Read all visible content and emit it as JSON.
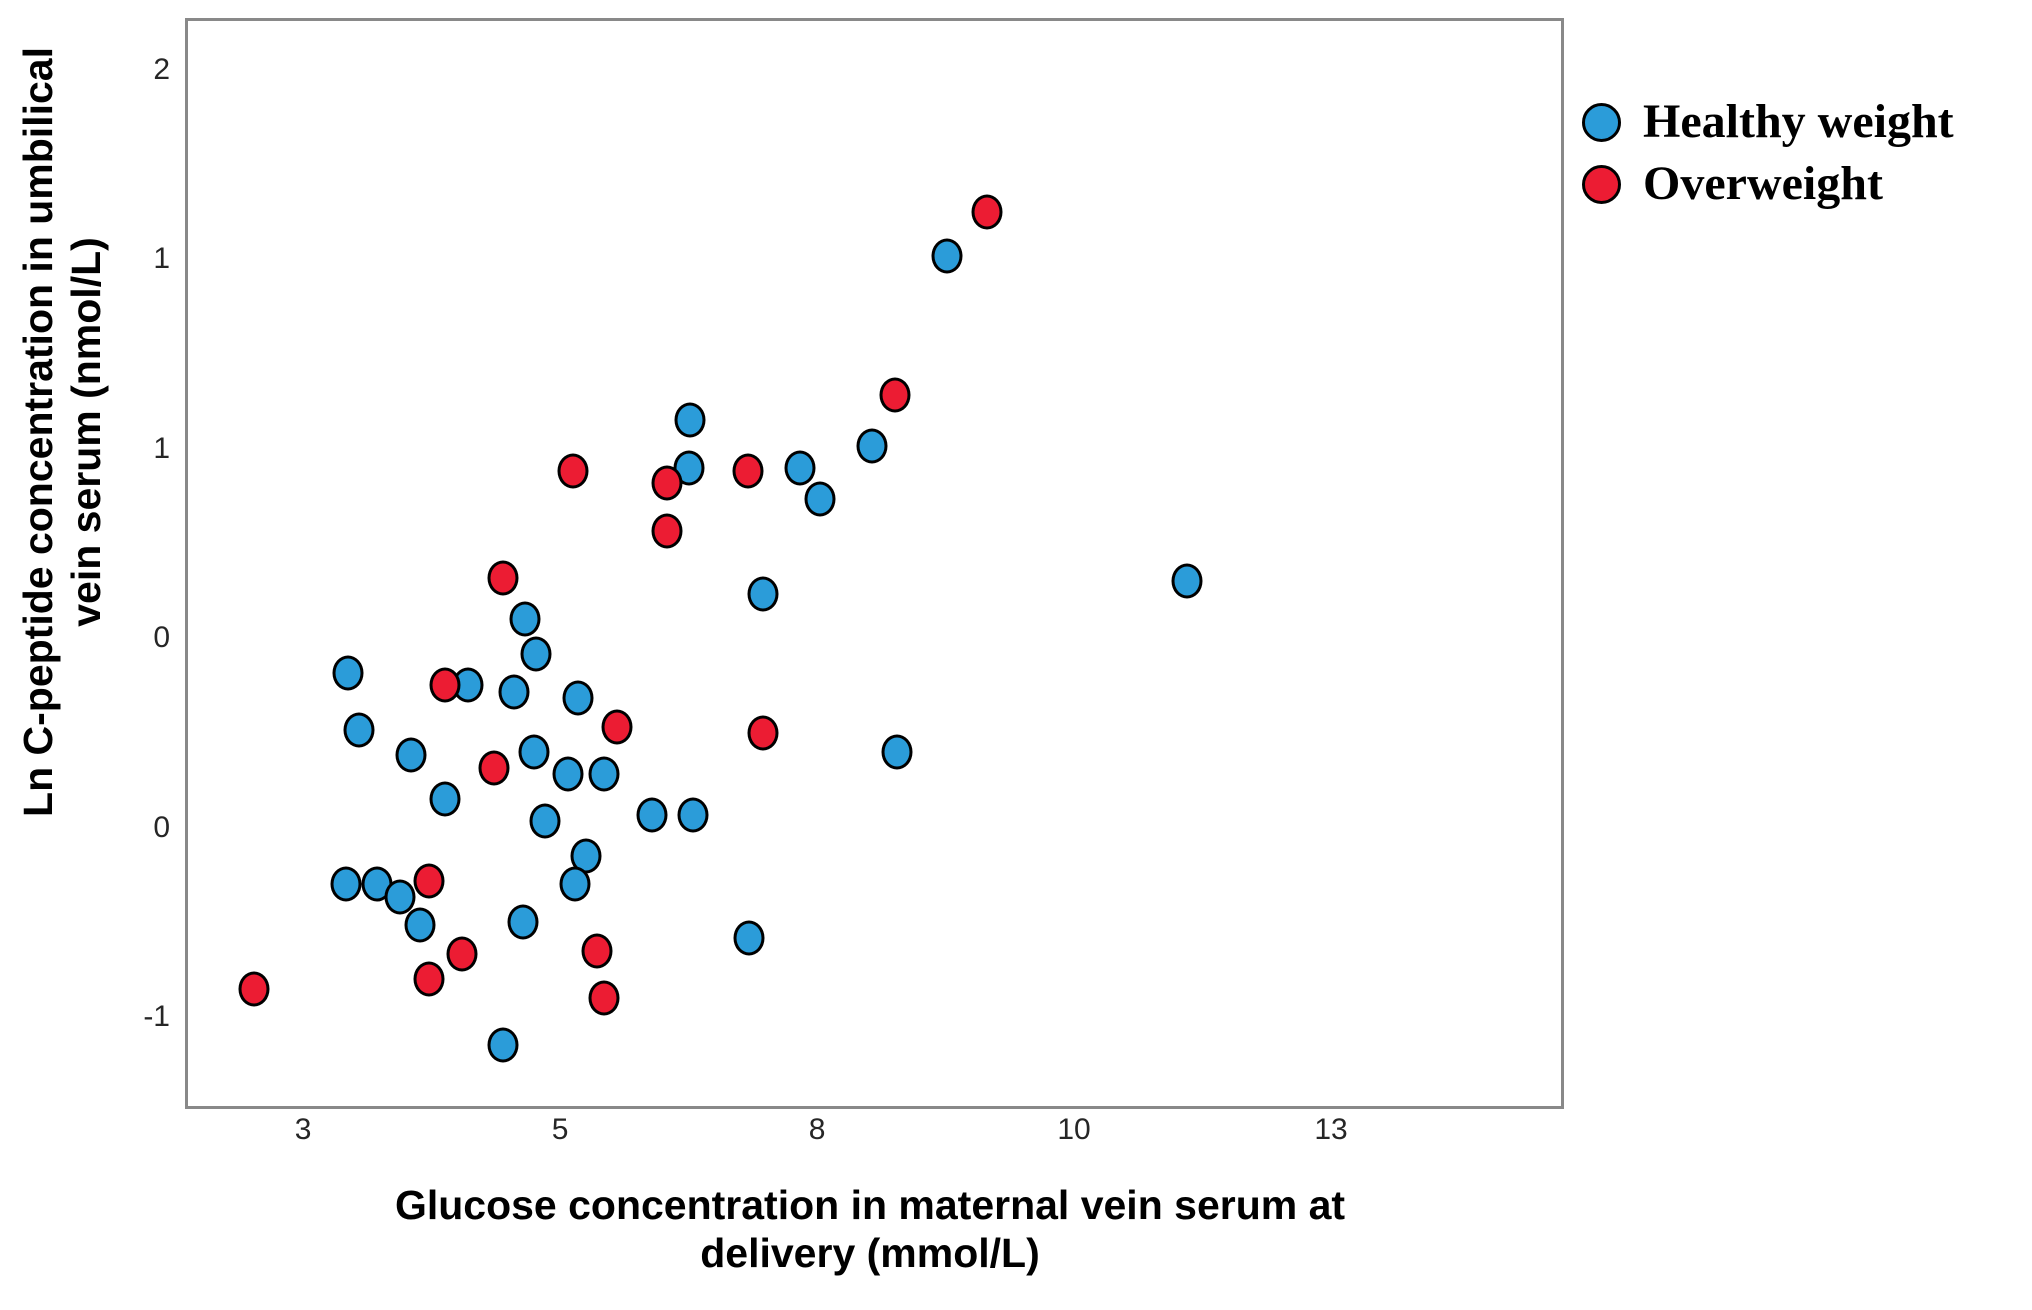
{
  "chart_data": {
    "type": "scatter",
    "title": "",
    "xlabel": "Glucose concentration in maternal vein serum at delivery (mmol/L)",
    "ylabel": "Ln C-peptide concentration in umbilical vein serum (nmol/L)",
    "xlabel_lines": [
      "Glucose concentration in maternal vein serum at",
      "delivery (mmol/L)"
    ],
    "ylabel_lines": [
      "Ln C-peptide concentration in umbilical",
      "vein serum (nmol/L)"
    ],
    "grid": false,
    "legend_position": "top-right",
    "xlim": [
      1.38,
      14.68
    ],
    "ylim": [
      -1.27,
      2.16
    ],
    "x_ticks": [
      {
        "value": 2.5,
        "label": "3"
      },
      {
        "value": 5.0,
        "label": "5"
      },
      {
        "value": 7.5,
        "label": "8"
      },
      {
        "value": 10.0,
        "label": "10"
      },
      {
        "value": 12.5,
        "label": "13"
      }
    ],
    "y_ticks": [
      {
        "value": 2.0,
        "label": "2"
      },
      {
        "value": 1.4,
        "label": "1"
      },
      {
        "value": 0.8,
        "label": "1"
      },
      {
        "value": 0.2,
        "label": "0"
      },
      {
        "value": -0.4,
        "label": "0"
      },
      {
        "value": -1.0,
        "label": "-1"
      }
    ],
    "series": [
      {
        "name": "Healthy weight",
        "color": "#2B9CD9",
        "points": [
          [
            6.26,
            0.89
          ],
          [
            6.25,
            0.74
          ],
          [
            7.33,
            0.74
          ],
          [
            7.53,
            0.64
          ],
          [
            8.03,
            0.81
          ],
          [
            8.76,
            1.41
          ],
          [
            11.1,
            0.38
          ],
          [
            8.28,
            -0.16
          ],
          [
            4.66,
            0.26
          ],
          [
            4.77,
            0.15
          ],
          [
            2.94,
            0.09
          ],
          [
            4.1,
            0.05
          ],
          [
            4.55,
            0.03
          ],
          [
            5.17,
            0.01
          ],
          [
            3.04,
            -0.09
          ],
          [
            3.55,
            -0.17
          ],
          [
            4.75,
            -0.16
          ],
          [
            5.08,
            -0.23
          ],
          [
            5.43,
            -0.23
          ],
          [
            5.89,
            -0.36
          ],
          [
            6.29,
            -0.36
          ],
          [
            3.88,
            -0.31
          ],
          [
            4.85,
            -0.38
          ],
          [
            6.97,
            0.34
          ],
          [
            5.25,
            -0.49
          ],
          [
            5.15,
            -0.58
          ],
          [
            2.92,
            -0.58
          ],
          [
            3.22,
            -0.58
          ],
          [
            3.44,
            -0.62
          ],
          [
            3.64,
            -0.71
          ],
          [
            4.64,
            -0.7
          ],
          [
            6.84,
            -0.75
          ],
          [
            4.45,
            -1.09
          ]
        ]
      },
      {
        "name": "Overweight",
        "color": "#EC1C33",
        "points": [
          [
            6.04,
            0.69
          ],
          [
            6.04,
            0.54
          ],
          [
            5.13,
            0.73
          ],
          [
            6.83,
            0.73
          ],
          [
            8.26,
            0.97
          ],
          [
            9.15,
            1.55
          ],
          [
            4.45,
            0.39
          ],
          [
            3.88,
            0.05
          ],
          [
            5.55,
            -0.08
          ],
          [
            4.36,
            -0.21
          ],
          [
            6.97,
            -0.1
          ],
          [
            3.73,
            -0.57
          ],
          [
            4.05,
            -0.8
          ],
          [
            3.73,
            -0.88
          ],
          [
            2.02,
            -0.91
          ],
          [
            5.36,
            -0.79
          ],
          [
            5.43,
            -0.94
          ]
        ]
      }
    ]
  },
  "legend": {
    "items": [
      {
        "label": "Healthy weight",
        "color": "#2B9CD9"
      },
      {
        "label": "Overweight",
        "color": "#EC1C33"
      }
    ]
  }
}
